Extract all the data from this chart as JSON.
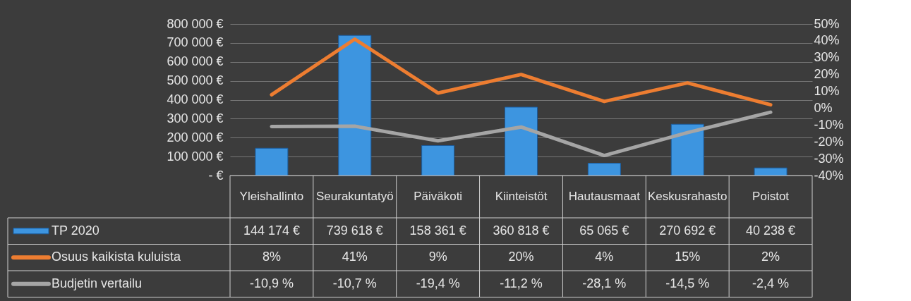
{
  "chart_data": {
    "type": "bar",
    "categories": [
      "Yleishallinto",
      "Seurakuntatyö",
      "Päiväkoti",
      "Kiinteistöt",
      "Hautausmaat",
      "Keskusrahasto",
      "Poistot"
    ],
    "series": [
      {
        "name": "TP 2020",
        "color": "#3d95e0",
        "values": [
          144174,
          739618,
          158361,
          360818,
          65065,
          270692,
          40238
        ],
        "value_labels": [
          "144 174 €",
          "739 618 €",
          "158 361 €",
          "360 818 €",
          "65 065 €",
          "270 692 €",
          "40 238 €"
        ]
      },
      {
        "name": "Osuus kaikista kuluista",
        "type": "line",
        "axis": "y2",
        "color": "#ed7d31",
        "values": [
          8,
          41,
          9,
          20,
          4,
          15,
          2
        ],
        "value_labels": [
          "8%",
          "41%",
          "9%",
          "20%",
          "4%",
          "15%",
          "2%"
        ]
      },
      {
        "name": "Budjetin vertailu",
        "type": "line",
        "axis": "y2",
        "color": "#a5a5a5",
        "values": [
          -10.9,
          -10.7,
          -19.4,
          -11.2,
          -28.1,
          -14.5,
          -2.4
        ],
        "value_labels": [
          "-10,9 %",
          "-10,7 %",
          "-19,4 %",
          "-11,2 %",
          "-28,1 %",
          "-14,5 %",
          "-2,4 %"
        ]
      }
    ],
    "ylim": [
      0,
      800000
    ],
    "yticks": [
      {
        "value": 0,
        "label": "-   €"
      },
      {
        "value": 100000,
        "label": "100 000 €"
      },
      {
        "value": 200000,
        "label": "200 000 €"
      },
      {
        "value": 300000,
        "label": "300 000 €"
      },
      {
        "value": 400000,
        "label": "400 000 €"
      },
      {
        "value": 500000,
        "label": "500 000 €"
      },
      {
        "value": 600000,
        "label": "600 000 €"
      },
      {
        "value": 700000,
        "label": "700 000 €"
      },
      {
        "value": 800000,
        "label": "800 000 €"
      }
    ],
    "y2lim": [
      -40,
      50
    ],
    "y2ticks": [
      {
        "value": -40,
        "label": "-40%"
      },
      {
        "value": -30,
        "label": "-30%"
      },
      {
        "value": -20,
        "label": "-20%"
      },
      {
        "value": -10,
        "label": "-10%"
      },
      {
        "value": 0,
        "label": "0%"
      },
      {
        "value": 10,
        "label": "10%"
      },
      {
        "value": 20,
        "label": "20%"
      },
      {
        "value": 30,
        "label": "30%"
      },
      {
        "value": 40,
        "label": "40%"
      },
      {
        "value": 50,
        "label": "50%"
      }
    ],
    "grid": "y",
    "legend": "bottom left"
  }
}
